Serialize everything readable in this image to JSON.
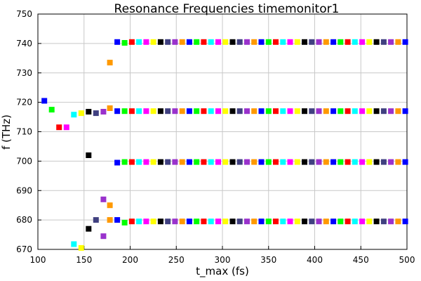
{
  "chart_data": {
    "type": "scatter",
    "title": "Resonance Frequencies timemonitor1",
    "xlabel": "t_max (fs)",
    "ylabel": "f (THz)",
    "xlim": [
      100,
      500
    ],
    "ylim": [
      670,
      750
    ],
    "xticks": [
      "100",
      "150",
      "200",
      "250",
      "300",
      "350",
      "400",
      "450",
      "500"
    ],
    "yticks": [
      "670",
      "680",
      "690",
      "700",
      "710",
      "720",
      "730",
      "740",
      "750"
    ],
    "grid": true,
    "legend": "none",
    "colors": [
      "#0000ff",
      "#00ff00",
      "#ff0000",
      "#00ffff",
      "#ff00ff",
      "#ffff00",
      "#000000",
      "#404080",
      "#9932cc",
      "#ff9900"
    ],
    "points": [
      {
        "x": 107,
        "y": 720.5,
        "c": 0
      },
      {
        "x": 115,
        "y": 717.5,
        "c": 1
      },
      {
        "x": 123,
        "y": 711.5,
        "c": 2
      },
      {
        "x": 131,
        "y": 711.5,
        "c": 4
      },
      {
        "x": 139,
        "y": 715.8,
        "c": 3
      },
      {
        "x": 139,
        "y": 671.8,
        "c": 3
      },
      {
        "x": 147,
        "y": 716.3,
        "c": 5
      },
      {
        "x": 147,
        "y": 670.5,
        "c": 5
      },
      {
        "x": 155,
        "y": 716.8,
        "c": 6
      },
      {
        "x": 155,
        "y": 702.0,
        "c": 6
      },
      {
        "x": 155,
        "y": 677.0,
        "c": 6
      },
      {
        "x": 163,
        "y": 716.3,
        "c": 7
      },
      {
        "x": 163,
        "y": 680.0,
        "c": 7
      },
      {
        "x": 171,
        "y": 716.8,
        "c": 8
      },
      {
        "x": 171,
        "y": 687.0,
        "c": 8
      },
      {
        "x": 171,
        "y": 674.5,
        "c": 8
      },
      {
        "x": 178,
        "y": 733.5,
        "c": 9
      },
      {
        "x": 178,
        "y": 718.0,
        "c": 9
      },
      {
        "x": 178,
        "y": 685.0,
        "c": 9
      },
      {
        "x": 178,
        "y": 680.0,
        "c": 9
      },
      {
        "x": 186,
        "y": 740.5,
        "c": 0
      },
      {
        "x": 186,
        "y": 717.0,
        "c": 0
      },
      {
        "x": 186,
        "y": 699.5,
        "c": 0
      },
      {
        "x": 186,
        "y": 680.0,
        "c": 0
      }
    ],
    "bands": [
      {
        "y": 740.5,
        "dev": {
          "194": -0.3
        }
      },
      {
        "y": 717.0,
        "dev": {}
      },
      {
        "y": 699.7,
        "dev": {
          "349": 0.9
        }
      },
      {
        "y": 679.5,
        "dev": {
          "194": -0.4
        }
      }
    ],
    "band_x_start": 194,
    "band_x_step": 7.8,
    "band_count": 40
  }
}
